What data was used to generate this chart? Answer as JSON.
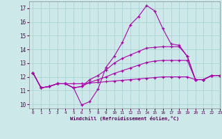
{
  "xlabel": "Windchill (Refroidissement éolien,°C)",
  "xlim": [
    -0.5,
    23
  ],
  "ylim": [
    9.7,
    17.5
  ],
  "yticks": [
    10,
    11,
    12,
    13,
    14,
    15,
    16,
    17
  ],
  "xticks": [
    0,
    1,
    2,
    3,
    4,
    5,
    6,
    7,
    8,
    9,
    10,
    11,
    12,
    13,
    14,
    15,
    16,
    17,
    18,
    19,
    20,
    21,
    22,
    23
  ],
  "bg_color": "#cce8e8",
  "grid_color": "#aad4d4",
  "line_color": "#aa00aa",
  "lines": [
    [
      12.3,
      11.2,
      11.3,
      11.5,
      11.5,
      11.2,
      9.95,
      10.2,
      11.1,
      12.7,
      13.5,
      14.5,
      15.8,
      16.4,
      17.2,
      16.8,
      15.5,
      14.4,
      14.3,
      13.5,
      11.8,
      11.8,
      12.1,
      12.1
    ],
    [
      12.3,
      11.2,
      11.3,
      11.5,
      11.5,
      11.2,
      11.3,
      11.8,
      12.1,
      12.5,
      13.0,
      13.35,
      13.6,
      13.85,
      14.1,
      14.15,
      14.2,
      14.2,
      14.2,
      13.5,
      11.8,
      11.8,
      12.1,
      12.1
    ],
    [
      12.3,
      11.2,
      11.3,
      11.5,
      11.5,
      11.2,
      11.3,
      11.6,
      11.8,
      12.0,
      12.25,
      12.45,
      12.65,
      12.85,
      13.05,
      13.15,
      13.2,
      13.2,
      13.2,
      13.2,
      11.8,
      11.8,
      12.1,
      12.1
    ],
    [
      12.3,
      11.2,
      11.3,
      11.5,
      11.5,
      11.5,
      11.5,
      11.55,
      11.6,
      11.65,
      11.7,
      11.75,
      11.8,
      11.85,
      11.9,
      11.95,
      12.0,
      12.0,
      12.0,
      12.0,
      11.8,
      11.8,
      12.1,
      12.1
    ]
  ]
}
